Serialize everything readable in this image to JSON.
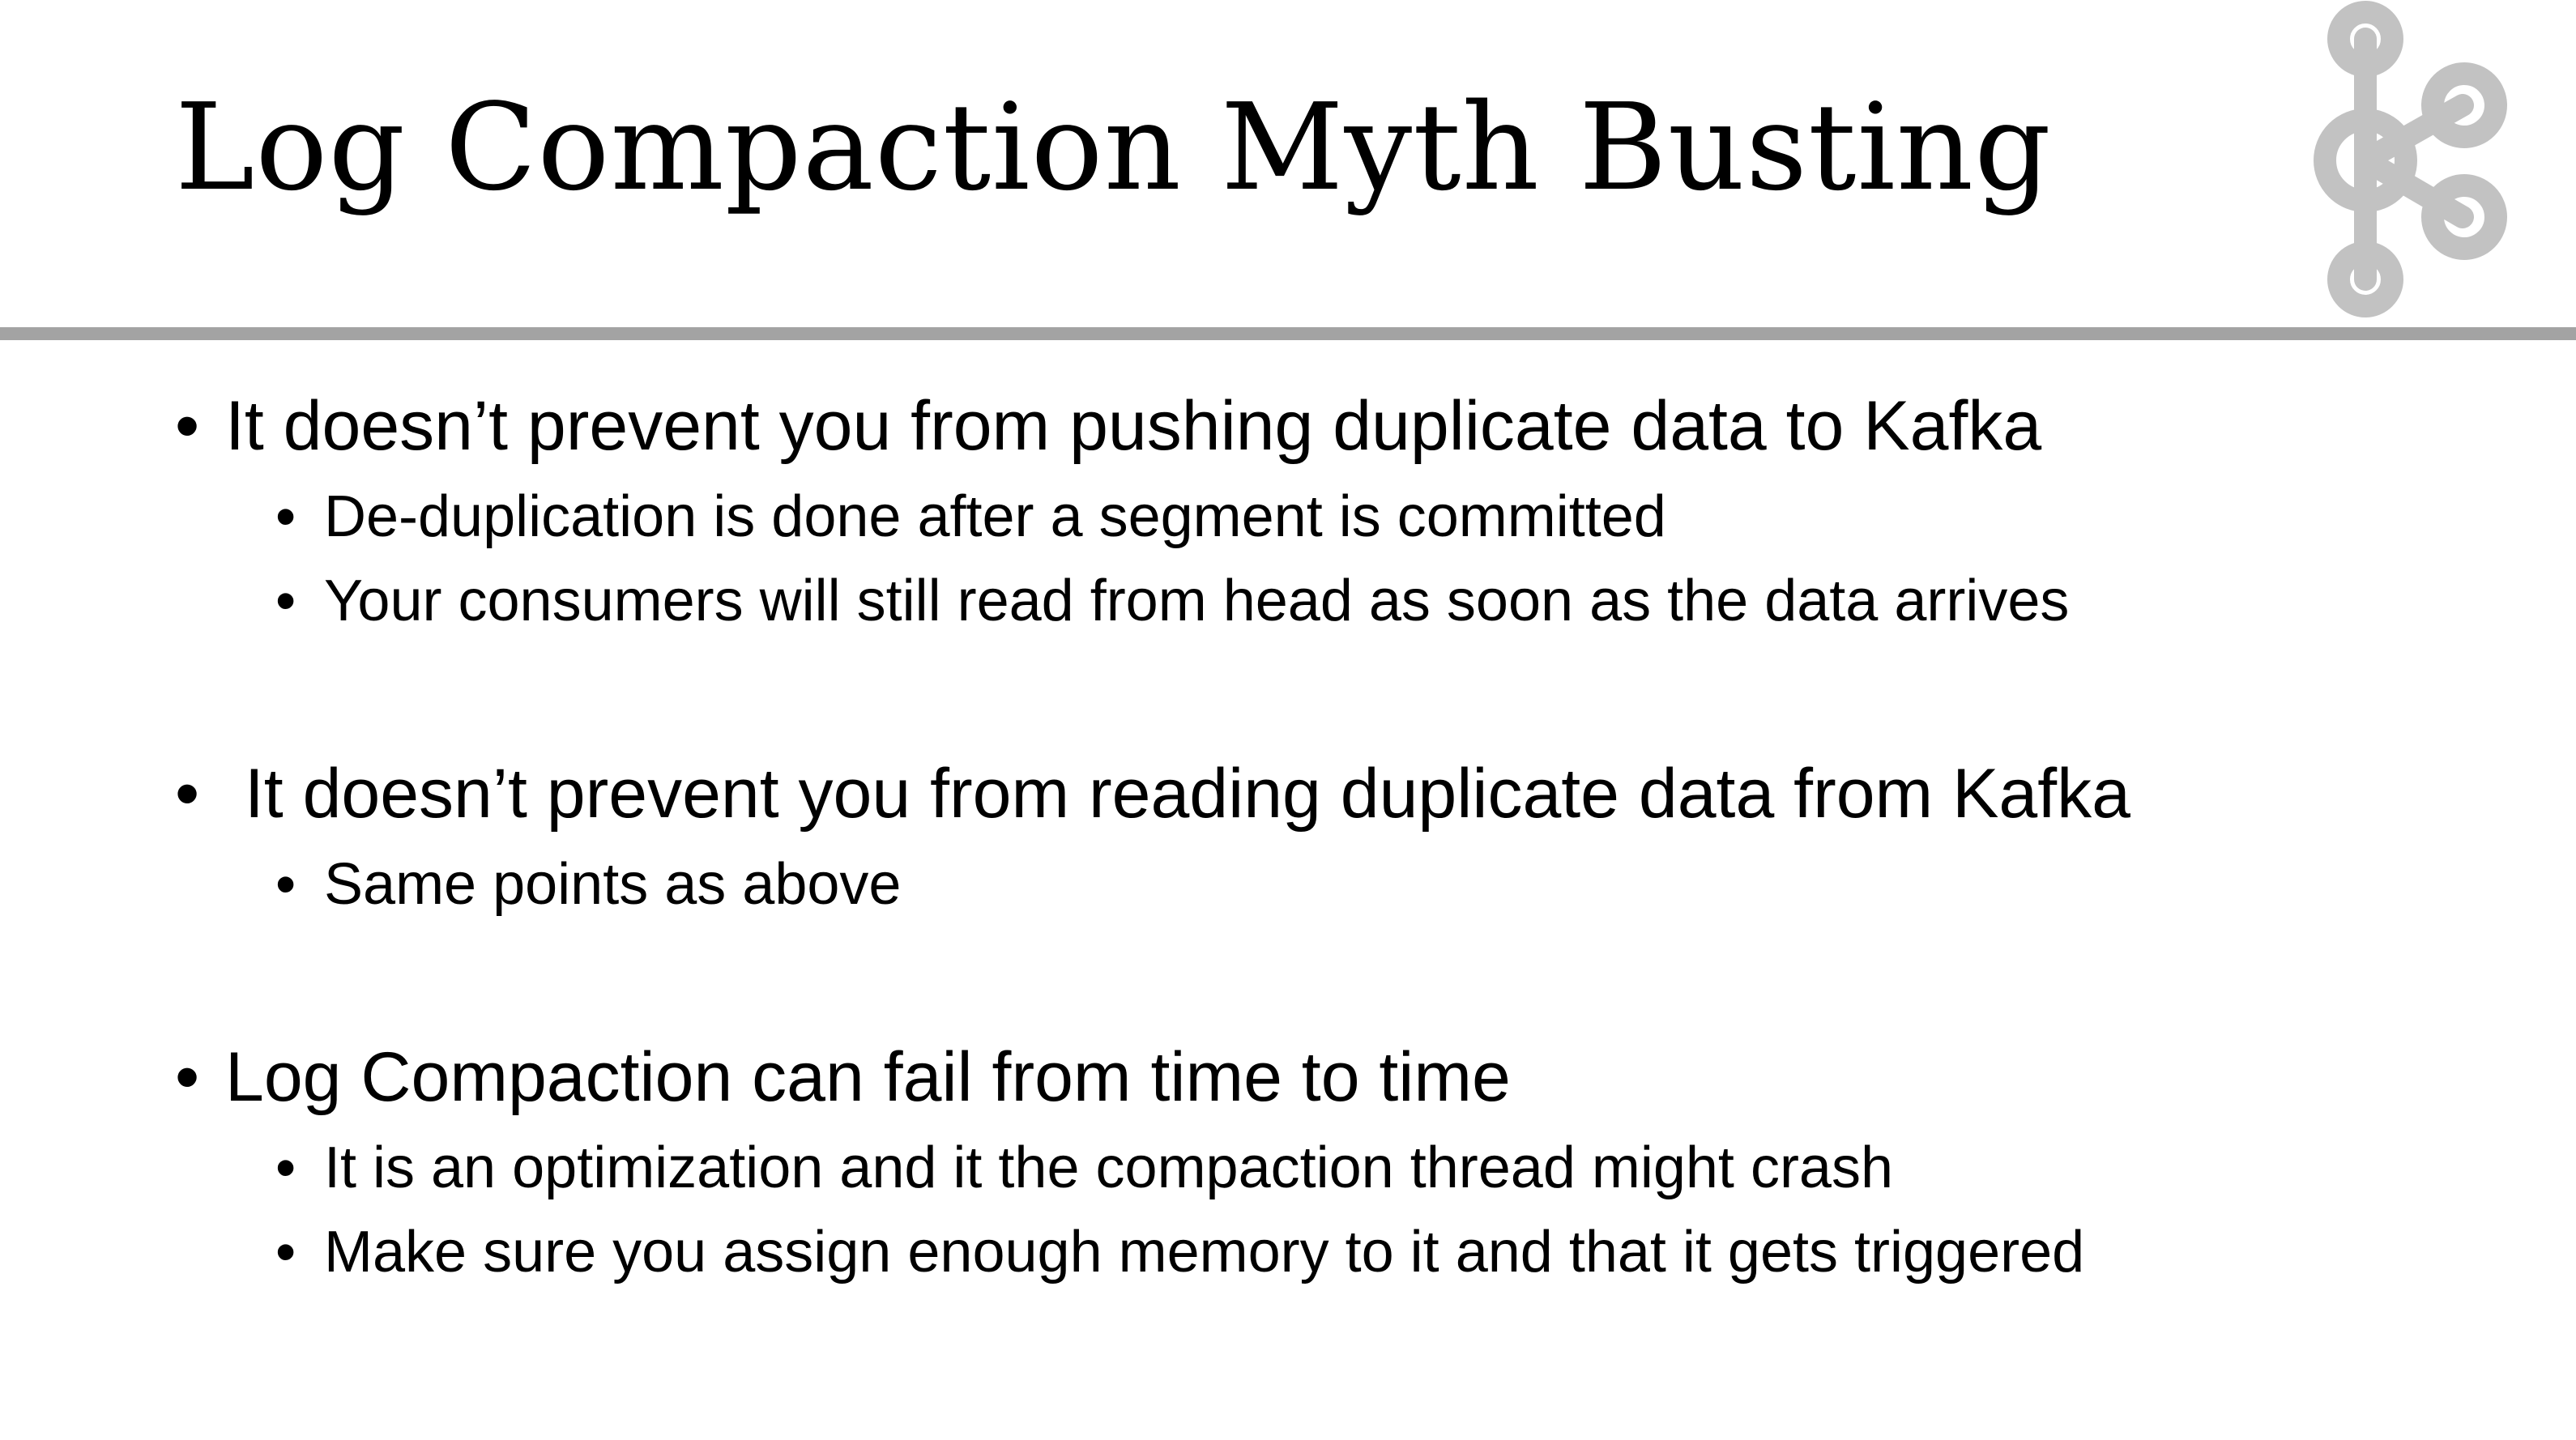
{
  "slide": {
    "title": "Log Compaction Myth Busting",
    "logo_icon": "kafka-logo-icon",
    "bullet_glyph": "•",
    "colors": {
      "text": "#000000",
      "divider": "#a3a3a3",
      "logo": "#c2c2c2",
      "background": "#ffffff"
    },
    "bullets": [
      {
        "text": "It doesn’t prevent you from pushing duplicate data to Kafka",
        "sub": [
          "De-duplication is done after a segment is committed",
          "Your consumers will still read from head as soon as the data arrives"
        ]
      },
      {
        "text": " It doesn’t prevent you from reading duplicate data from Kafka",
        "sub": [
          "Same points as above"
        ]
      },
      {
        "text": "Log Compaction can fail from time to time",
        "sub": [
          "It is an optimization and it the compaction thread might crash",
          "Make sure you assign enough memory to it and that it gets triggered"
        ]
      }
    ]
  }
}
